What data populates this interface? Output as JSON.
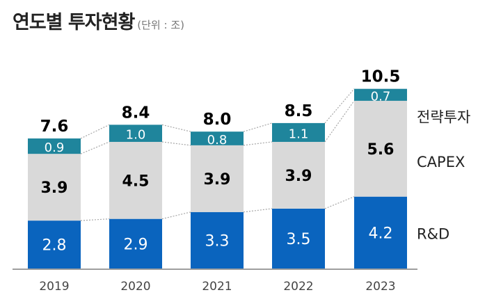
{
  "header": {
    "title": "연도별 투자현황",
    "unit": "(단위 : 조)"
  },
  "colors": {
    "rnd": "#0a64be",
    "capex": "#d9d9d9",
    "strategic": "#1f859c",
    "connector": "#a6a6a6",
    "axis": "#7f7f7f"
  },
  "chart_data": {
    "type": "bar",
    "stacked": true,
    "categories": [
      "2019",
      "2020",
      "2021",
      "2022",
      "2023"
    ],
    "series": [
      {
        "name": "R&D",
        "values": [
          2.8,
          2.9,
          3.3,
          3.5,
          4.2
        ],
        "labels": [
          "2.8",
          "2.9",
          "3.3",
          "3.5",
          "4.2"
        ]
      },
      {
        "name": "CAPEX",
        "values": [
          3.9,
          4.5,
          3.9,
          3.9,
          5.6
        ],
        "labels": [
          "3.9",
          "4.5",
          "3.9",
          "3.9",
          "5.6"
        ]
      },
      {
        "name": "전략투자",
        "values": [
          0.9,
          1.0,
          0.8,
          1.1,
          0.7
        ],
        "labels": [
          "0.9",
          "1.0",
          "0.8",
          "1.1",
          "0.7"
        ]
      }
    ],
    "totals": [
      "7.6",
      "8.4",
      "8.0",
      "8.5",
      "10.5"
    ],
    "legend_position": "right",
    "grid": false
  }
}
